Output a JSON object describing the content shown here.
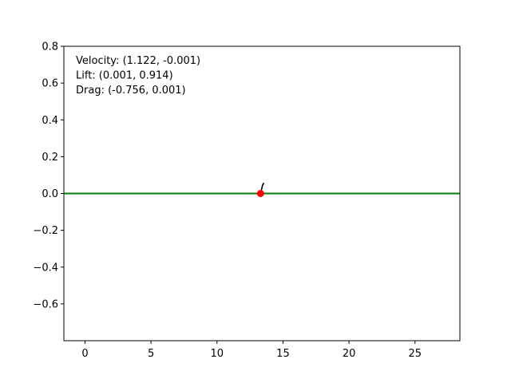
{
  "chart_data": {
    "type": "line",
    "title": "",
    "xlabel": "",
    "ylabel": "",
    "xlim": [
      -1.6,
      28.4
    ],
    "ylim": [
      -0.8,
      0.8
    ],
    "x_ticks": [
      {
        "value": 0,
        "label": "0"
      },
      {
        "value": 5,
        "label": "5"
      },
      {
        "value": 10,
        "label": "10"
      },
      {
        "value": 15,
        "label": "15"
      },
      {
        "value": 20,
        "label": "20"
      },
      {
        "value": 25,
        "label": "25"
      }
    ],
    "y_ticks": [
      {
        "value": 0.8,
        "label": "0.8"
      },
      {
        "value": 0.6,
        "label": "0.6"
      },
      {
        "value": 0.4,
        "label": "0.4"
      },
      {
        "value": 0.2,
        "label": "0.2"
      },
      {
        "value": 0.0,
        "label": "0.0"
      },
      {
        "value": -0.2,
        "label": "−0.2"
      },
      {
        "value": -0.4,
        "label": "−0.4"
      },
      {
        "value": -0.6,
        "label": "−0.6"
      }
    ],
    "grid": false,
    "series": [
      {
        "kind": "line",
        "color": "#008000",
        "x": [
          -1.6,
          28.4
        ],
        "y": [
          0.0,
          0.0
        ]
      },
      {
        "kind": "line",
        "color": "#000000",
        "x": [
          13.3,
          13.45,
          13.55
        ],
        "y": [
          0.0,
          0.045,
          0.058
        ]
      },
      {
        "kind": "point",
        "color": "#ff0000",
        "x": [
          13.3
        ],
        "y": [
          0.0
        ]
      }
    ],
    "annotations": [
      "Velocity: (1.122, -0.001)",
      "Lift: (0.001, 0.914)",
      "Drag: (-0.756, 0.001)"
    ]
  }
}
